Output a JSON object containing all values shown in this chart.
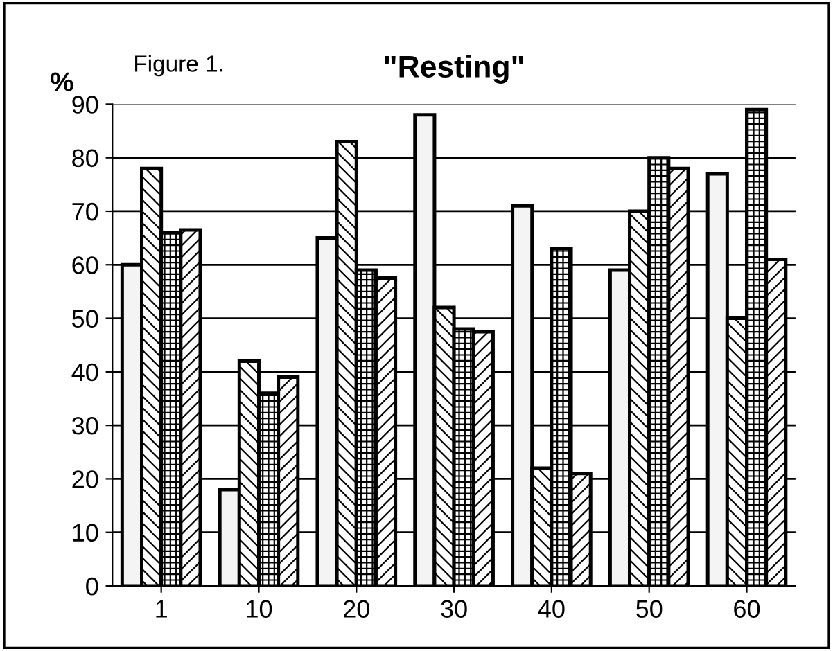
{
  "chart_data": {
    "type": "bar",
    "title": "\"Resting\"",
    "ylabel": "%",
    "annotations": [
      "Figure 1."
    ],
    "categories": [
      "1",
      "10",
      "20",
      "30",
      "40",
      "50",
      "60"
    ],
    "series": [
      {
        "color": "#f4f4f4",
        "values": [
          60,
          18,
          65,
          88,
          71,
          59,
          77
        ]
      },
      {
        "color": "#000000",
        "values": [
          78,
          42,
          83,
          52,
          22,
          70,
          50
        ]
      },
      {
        "color": "#000000",
        "values": [
          66,
          36,
          59,
          48,
          63,
          80,
          89
        ]
      },
      {
        "color": "#000000",
        "values": [
          66.5,
          39,
          57.5,
          47.5,
          21,
          78,
          61
        ]
      }
    ],
    "ylim": [
      0,
      90
    ],
    "yticks": [
      0,
      10,
      20,
      30,
      40,
      50,
      60,
      70,
      80,
      90
    ],
    "grid": "y",
    "legend": false
  }
}
